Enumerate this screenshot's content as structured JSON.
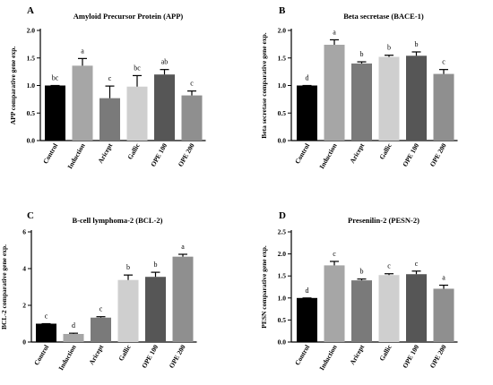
{
  "chart_data": [
    {
      "panel": "A",
      "type": "bar",
      "title": "Amyloid Precursor Protein (APP)",
      "ylabel": "APP comparative gene exp.",
      "ylim": [
        0,
        2.0
      ],
      "yticks": [
        "0.0",
        "0.5",
        "1.0",
        "1.5",
        "2.0"
      ],
      "tick_values": [
        0,
        0.5,
        1.0,
        1.5,
        2.0
      ],
      "categories": [
        "Control",
        "Induction",
        "Aricept",
        "Gallic",
        "OPE 100",
        "OPE 200"
      ],
      "values": [
        1.0,
        1.36,
        0.77,
        0.98,
        1.2,
        0.82
      ],
      "errors": [
        0.0,
        0.13,
        0.22,
        0.2,
        0.09,
        0.08
      ],
      "significance": [
        "bc",
        "a",
        "c",
        "bc",
        "ab",
        "c"
      ],
      "colors": [
        "#000000",
        "#a6a6a6",
        "#7a7a7a",
        "#cfcfcf",
        "#565656",
        "#8f8f8f"
      ]
    },
    {
      "panel": "B",
      "type": "bar",
      "title": "Beta secretase (BACE-1)",
      "ylabel": "Beta secretase comparative gene exp.",
      "ylim": [
        0,
        2.0
      ],
      "yticks": [
        "0.0",
        "0.5",
        "1.0",
        "1.5",
        "2.0"
      ],
      "tick_values": [
        0,
        0.5,
        1.0,
        1.5,
        2.0
      ],
      "categories": [
        "Control",
        "Induction",
        "Aricept",
        "Gallic",
        "OPE 100",
        "OPE 200"
      ],
      "values": [
        1.0,
        1.74,
        1.4,
        1.52,
        1.54,
        1.21
      ],
      "errors": [
        0.0,
        0.09,
        0.03,
        0.03,
        0.07,
        0.08
      ],
      "significance": [
        "d",
        "a",
        "b",
        "b",
        "b",
        "c"
      ],
      "colors": [
        "#000000",
        "#a6a6a6",
        "#7a7a7a",
        "#cfcfcf",
        "#565656",
        "#8f8f8f"
      ]
    },
    {
      "panel": "C",
      "type": "bar",
      "title": "B-cell lymphoma-2 (BCL-2)",
      "ylabel": "BCL-2 comparative gene exp.",
      "ylim": [
        0,
        6
      ],
      "yticks": [
        "0",
        "2",
        "4",
        "6"
      ],
      "tick_values": [
        0,
        2,
        4,
        6
      ],
      "categories": [
        "Control",
        "Induction",
        "Aricept",
        "Gallic",
        "OPE 100",
        "OPE 200"
      ],
      "values": [
        1.0,
        0.44,
        1.33,
        3.38,
        3.55,
        4.65
      ],
      "errors": [
        0.0,
        0.04,
        0.05,
        0.27,
        0.25,
        0.13
      ],
      "significance": [
        "c",
        "d",
        "c",
        "b",
        "b",
        "a"
      ],
      "colors": [
        "#000000",
        "#a6a6a6",
        "#7a7a7a",
        "#cfcfcf",
        "#565656",
        "#8f8f8f"
      ]
    },
    {
      "panel": "D",
      "type": "bar",
      "title": "Presenilin-2 (PESN-2)",
      "ylabel": "PESN comparative gene exp.",
      "ylim": [
        0,
        2.5
      ],
      "yticks": [
        "0.0",
        "0.5",
        "1.0",
        "1.5",
        "2.0",
        "2.5"
      ],
      "tick_values": [
        0,
        0.5,
        1.0,
        1.5,
        2.0,
        2.5
      ],
      "categories": [
        "Control",
        "Induction",
        "Aricept",
        "Gallic",
        "OPE 100",
        "OPE 200"
      ],
      "values": [
        1.0,
        1.74,
        1.4,
        1.52,
        1.54,
        1.21
      ],
      "errors": [
        0.0,
        0.09,
        0.03,
        0.03,
        0.07,
        0.08
      ],
      "significance": [
        "d",
        "c",
        "b",
        "c",
        "c",
        "a"
      ],
      "colors": [
        "#000000",
        "#a6a6a6",
        "#7a7a7a",
        "#cfcfcf",
        "#565656",
        "#8f8f8f"
      ]
    }
  ]
}
